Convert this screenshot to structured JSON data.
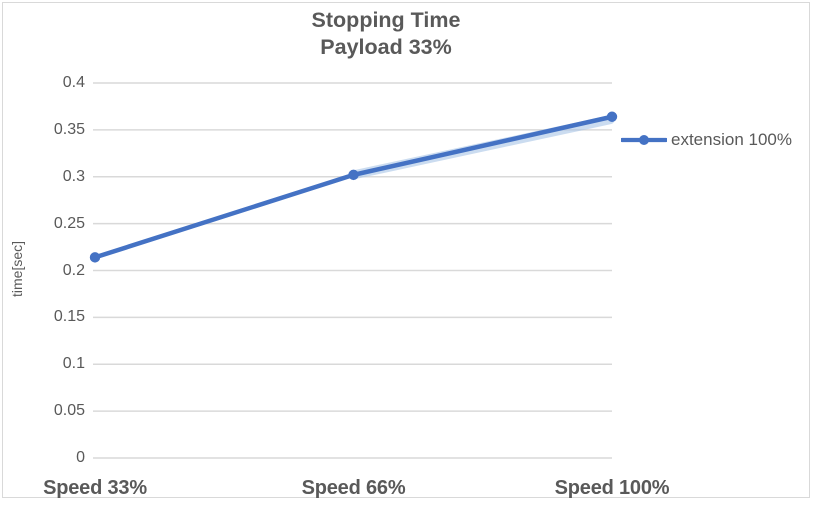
{
  "chart_data": {
    "type": "line",
    "title": "Stopping Time",
    "subtitle": "Payload 33%",
    "ylabel": "time[sec]",
    "xlabel": "",
    "categories": [
      "Speed 33%",
      "Speed 66%",
      "Speed 100%"
    ],
    "series": [
      {
        "name": "extension 100%",
        "values": [
          0.214,
          0.302,
          0.364
        ]
      }
    ],
    "ylim": [
      0,
      0.4
    ],
    "ytick_interval": 0.05,
    "ytick_labels": [
      "0",
      "0.05",
      "0.1",
      "0.15",
      "0.2",
      "0.25",
      "0.3",
      "0.35",
      "0.4"
    ],
    "grid": "horizontal",
    "legend_position": "right"
  },
  "colors": {
    "series_line": "#4472C4",
    "series_glow": "#A9C4E6",
    "gridline": "#D9D9D9",
    "frame_border": "#D9D9D9",
    "text": "#595959",
    "background": "#FFFFFF"
  }
}
